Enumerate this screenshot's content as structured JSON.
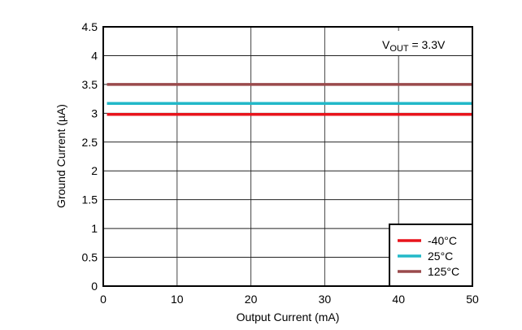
{
  "chart_data": {
    "type": "line",
    "title": "",
    "xlabel": "Output Current (mA)",
    "ylabel": "Ground Current (µA)",
    "xlim": [
      0,
      50
    ],
    "ylim": [
      0,
      4.5
    ],
    "xticks": [
      0,
      10,
      20,
      30,
      40,
      50
    ],
    "yticks": [
      "0",
      "0.5",
      "1",
      "1.5",
      "2",
      "2.5",
      "3",
      "3.5",
      "4",
      "4.5"
    ],
    "grid": true,
    "annotation": {
      "prefix": "V",
      "subscript": "OUT",
      "suffix": " = 3.3V"
    },
    "legend_placement": "bottom-right",
    "series": [
      {
        "name": "-40°C",
        "color": "#e8141c",
        "x": [
          0.5,
          50
        ],
        "y": [
          2.98,
          2.98
        ]
      },
      {
        "name": "25°C",
        "color": "#22b8c8",
        "x": [
          0.5,
          50
        ],
        "y": [
          3.17,
          3.17
        ]
      },
      {
        "name": "125°C",
        "color": "#9a4a4c",
        "x": [
          0.5,
          50
        ],
        "y": [
          3.5,
          3.5
        ]
      }
    ]
  }
}
